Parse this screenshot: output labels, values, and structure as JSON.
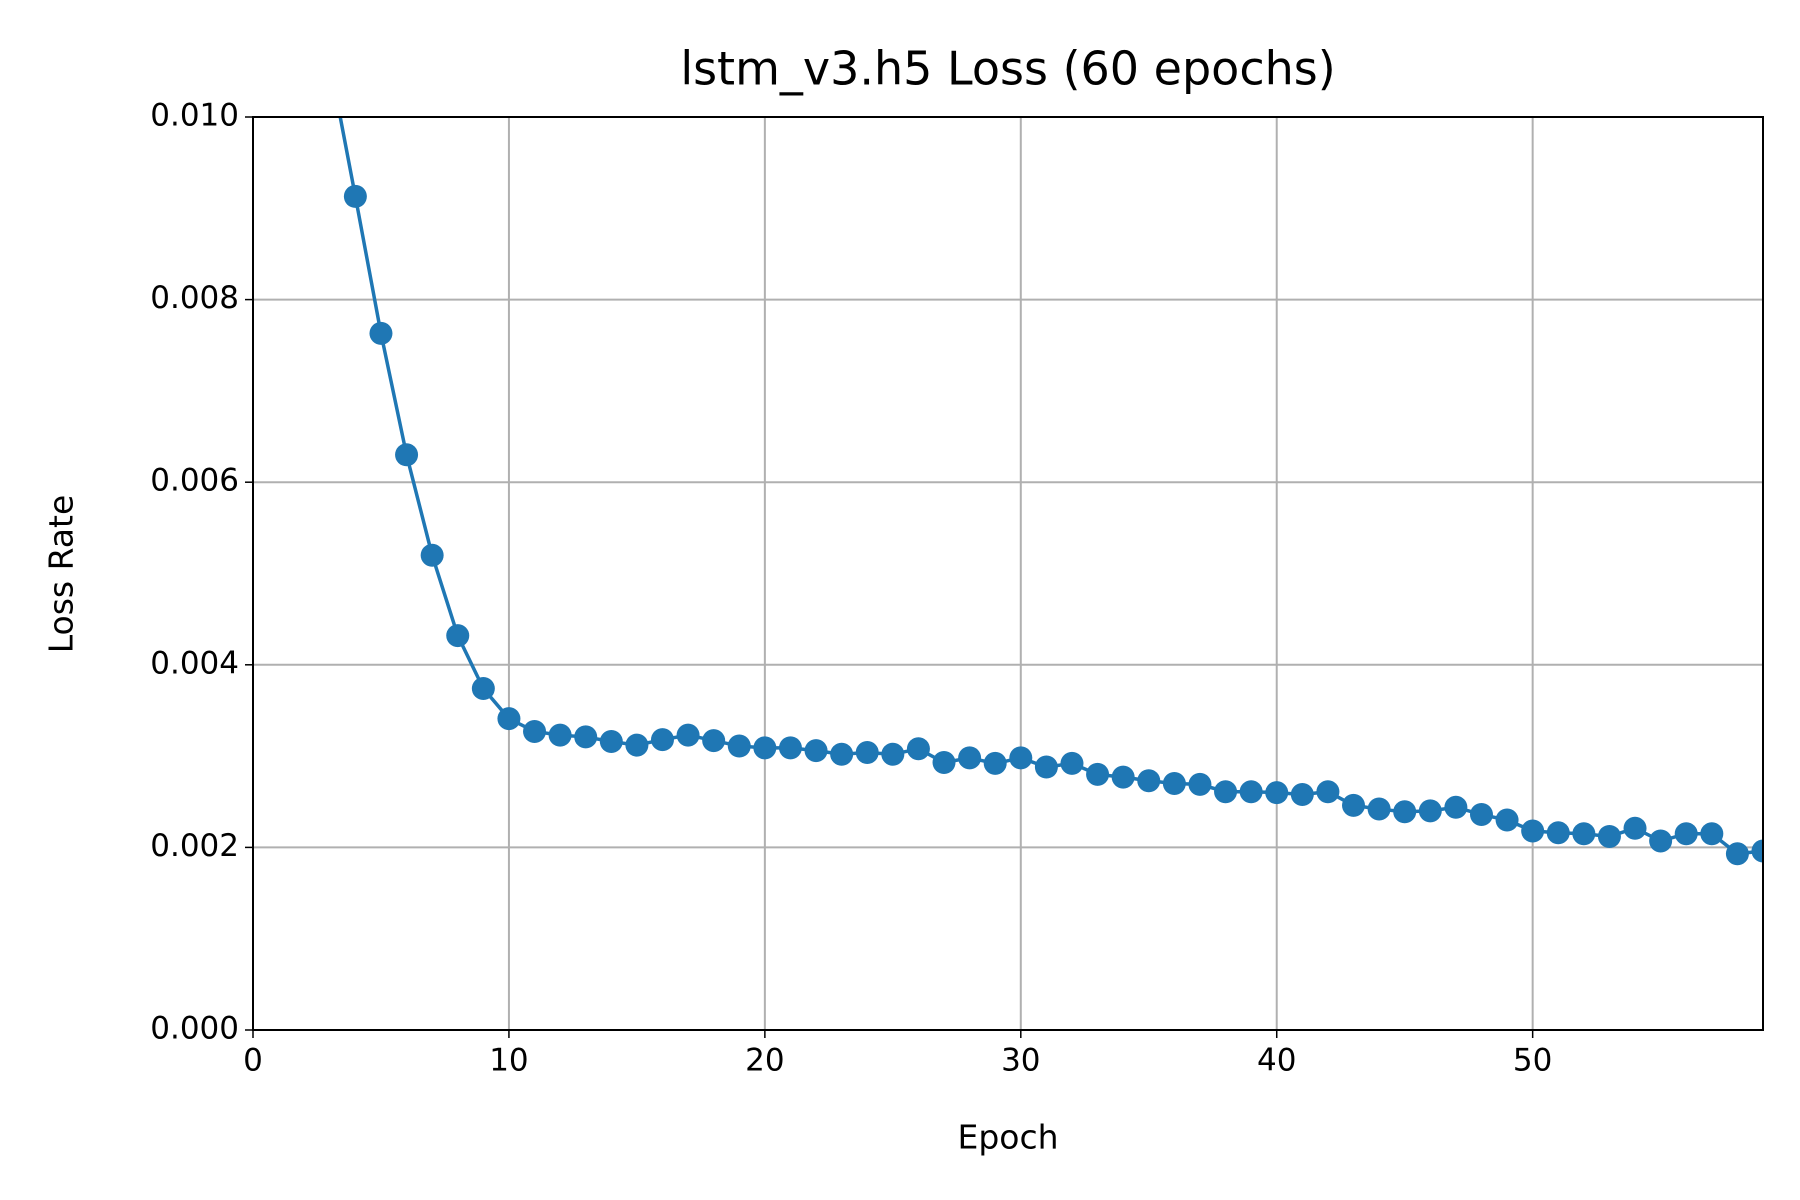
{
  "chart_data": {
    "type": "line",
    "title": "lstm_v3.h5 Loss (60 epochs)",
    "x_label": "Epoch",
    "y_label": "Loss Rate",
    "x": [
      3,
      4,
      5,
      6,
      7,
      8,
      9,
      10,
      11,
      12,
      13,
      14,
      15,
      16,
      17,
      18,
      19,
      20,
      21,
      22,
      23,
      24,
      25,
      26,
      27,
      28,
      29,
      30,
      31,
      32,
      33,
      34,
      35,
      36,
      37,
      38,
      39,
      40,
      41,
      42,
      43,
      44,
      45,
      46,
      47,
      48,
      49,
      50,
      51,
      52,
      53,
      54,
      55,
      56,
      57,
      58,
      59
    ],
    "series": [
      {
        "name": "Loss",
        "color": "#1f77b4",
        "values": [
          0.0106,
          0.00913,
          0.00763,
          0.0063,
          0.0052,
          0.00432,
          0.00374,
          0.00341,
          0.00327,
          0.00323,
          0.00321,
          0.00316,
          0.00312,
          0.00318,
          0.00323,
          0.00317,
          0.00311,
          0.00309,
          0.00309,
          0.00306,
          0.00302,
          0.00304,
          0.00302,
          0.00308,
          0.00293,
          0.00298,
          0.00292,
          0.00298,
          0.00288,
          0.00292,
          0.0028,
          0.00277,
          0.00273,
          0.0027,
          0.00269,
          0.00261,
          0.00261,
          0.0026,
          0.00258,
          0.00261,
          0.00246,
          0.00242,
          0.00239,
          0.0024,
          0.00244,
          0.00236,
          0.0023,
          0.00218,
          0.00216,
          0.00215,
          0.00212,
          0.00221,
          0.00207,
          0.00215,
          0.00215,
          0.00193,
          0.00196
        ]
      }
    ],
    "xlim": [
      0,
      59
    ],
    "xticks": [
      0,
      10,
      20,
      30,
      40,
      50
    ],
    "ylim": [
      0,
      0.01
    ],
    "yticks": [
      {
        "value": 0,
        "label": "0.000"
      },
      {
        "value": 0.002,
        "label": "0.002"
      },
      {
        "value": 0.004,
        "label": "0.004"
      },
      {
        "value": 0.006,
        "label": "0.006"
      },
      {
        "value": 0.008,
        "label": "0.008"
      },
      {
        "value": 0.01,
        "label": "0.010"
      }
    ],
    "grid": true
  }
}
